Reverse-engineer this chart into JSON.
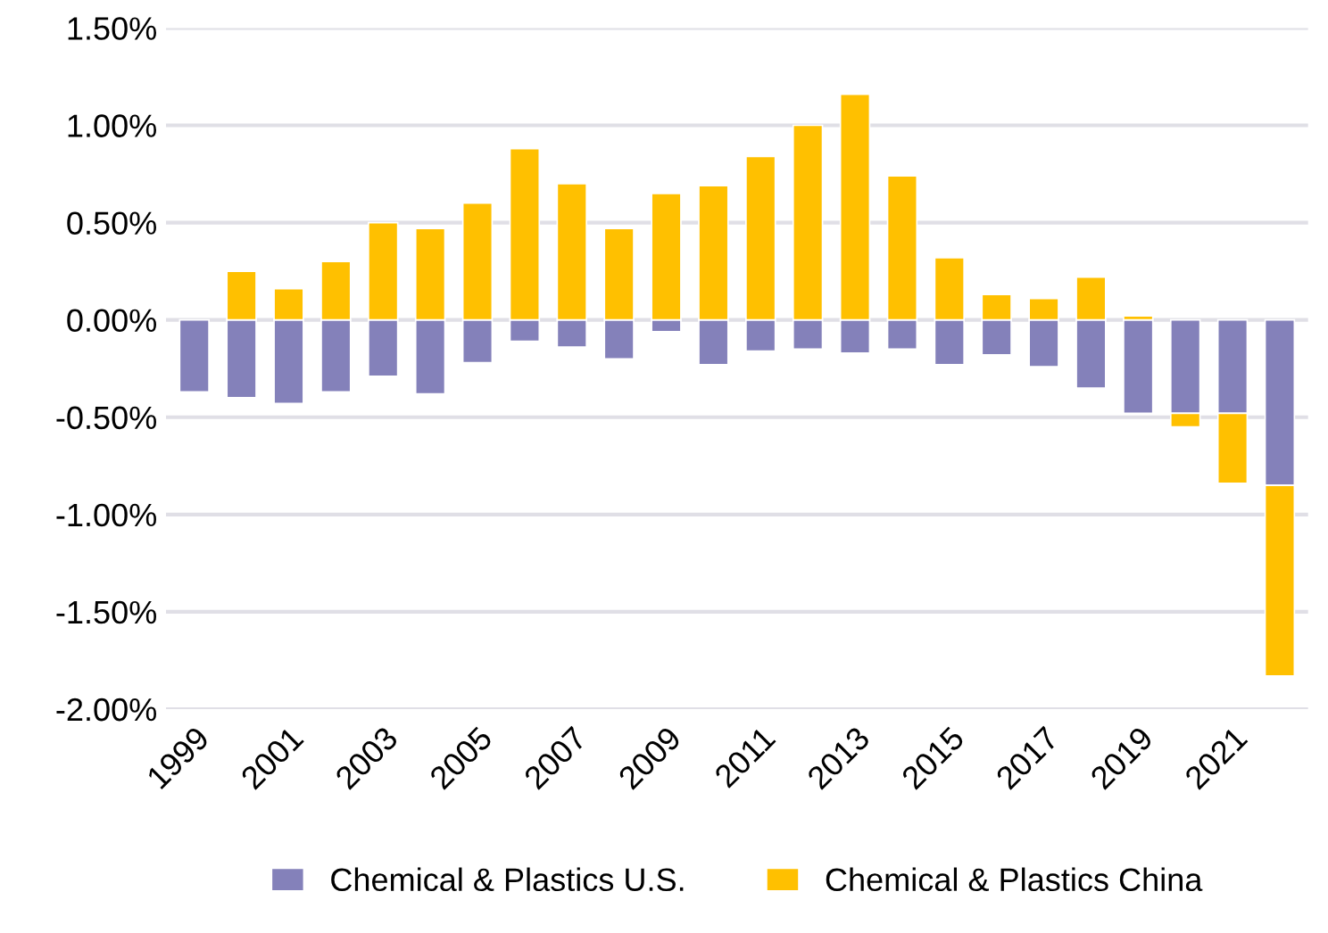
{
  "chart_data": {
    "type": "bar",
    "stacked": true,
    "categories": [
      "1999",
      null,
      "2001",
      null,
      "2003",
      null,
      "2005",
      null,
      "2007",
      null,
      "2009",
      null,
      "2011",
      null,
      "2013",
      null,
      "2015",
      null,
      "2017",
      null,
      "2019",
      null,
      "2021",
      null
    ],
    "series": [
      {
        "name": "Chemical & Plastics U.S.",
        "color": "#8481ba",
        "values": [
          -0.37,
          -0.4,
          -0.43,
          -0.37,
          -0.29,
          -0.38,
          -0.22,
          -0.11,
          -0.14,
          -0.2,
          -0.06,
          -0.23,
          -0.16,
          -0.15,
          -0.17,
          -0.15,
          -0.23,
          -0.18,
          -0.24,
          -0.35,
          -0.48,
          -0.48,
          -0.48,
          -0.85
        ]
      },
      {
        "name": "Chemical & Plastics China",
        "color": "#ffc000",
        "values": [
          null,
          0.25,
          0.16,
          0.3,
          0.5,
          0.47,
          0.6,
          0.88,
          0.7,
          0.47,
          0.65,
          0.69,
          0.84,
          1.0,
          1.16,
          0.74,
          0.32,
          0.13,
          0.11,
          0.22,
          0.02,
          -0.07,
          -0.36,
          -0.98
        ]
      }
    ],
    "ylim": [
      -2.0,
      1.5
    ],
    "yticks": [
      {
        "value": -2.0,
        "label": "-2.00%"
      },
      {
        "value": -1.5,
        "label": "-1.50%"
      },
      {
        "value": -1.0,
        "label": "-1.00%"
      },
      {
        "value": -0.5,
        "label": "-0.50%"
      },
      {
        "value": 0,
        "label": "0.00%"
      },
      {
        "value": 0.5,
        "label": "0.50%"
      },
      {
        "value": 1.0,
        "label": "1.00%"
      },
      {
        "value": 1.5,
        "label": "1.50%"
      }
    ],
    "grid": "y",
    "legend": "bottom"
  }
}
